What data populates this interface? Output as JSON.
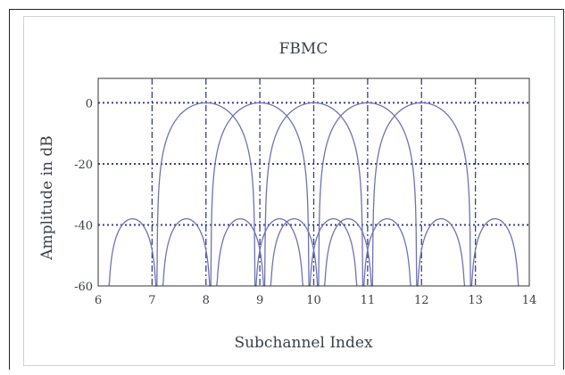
{
  "chart_data": {
    "type": "line",
    "title": "FBMC",
    "xlabel": "Subchannel Index",
    "ylabel": "Amplitude in dB",
    "xlim": [
      6,
      14
    ],
    "ylim": [
      -60,
      0
    ],
    "xticks": [
      6,
      7,
      8,
      9,
      10,
      11,
      12,
      13,
      14
    ],
    "yticks": [
      0,
      -20,
      -40,
      -60
    ],
    "ytick_labels": [
      "0",
      "-20",
      "-40",
      "-60"
    ],
    "grid": true,
    "series": [
      {
        "center": 8
      },
      {
        "center": 9
      },
      {
        "center": 10
      },
      {
        "center": 11
      },
      {
        "center": 12
      }
    ],
    "colors": {
      "line": "#6f73b3",
      "grid": "#3b3f8a",
      "axis": "#333333"
    }
  }
}
